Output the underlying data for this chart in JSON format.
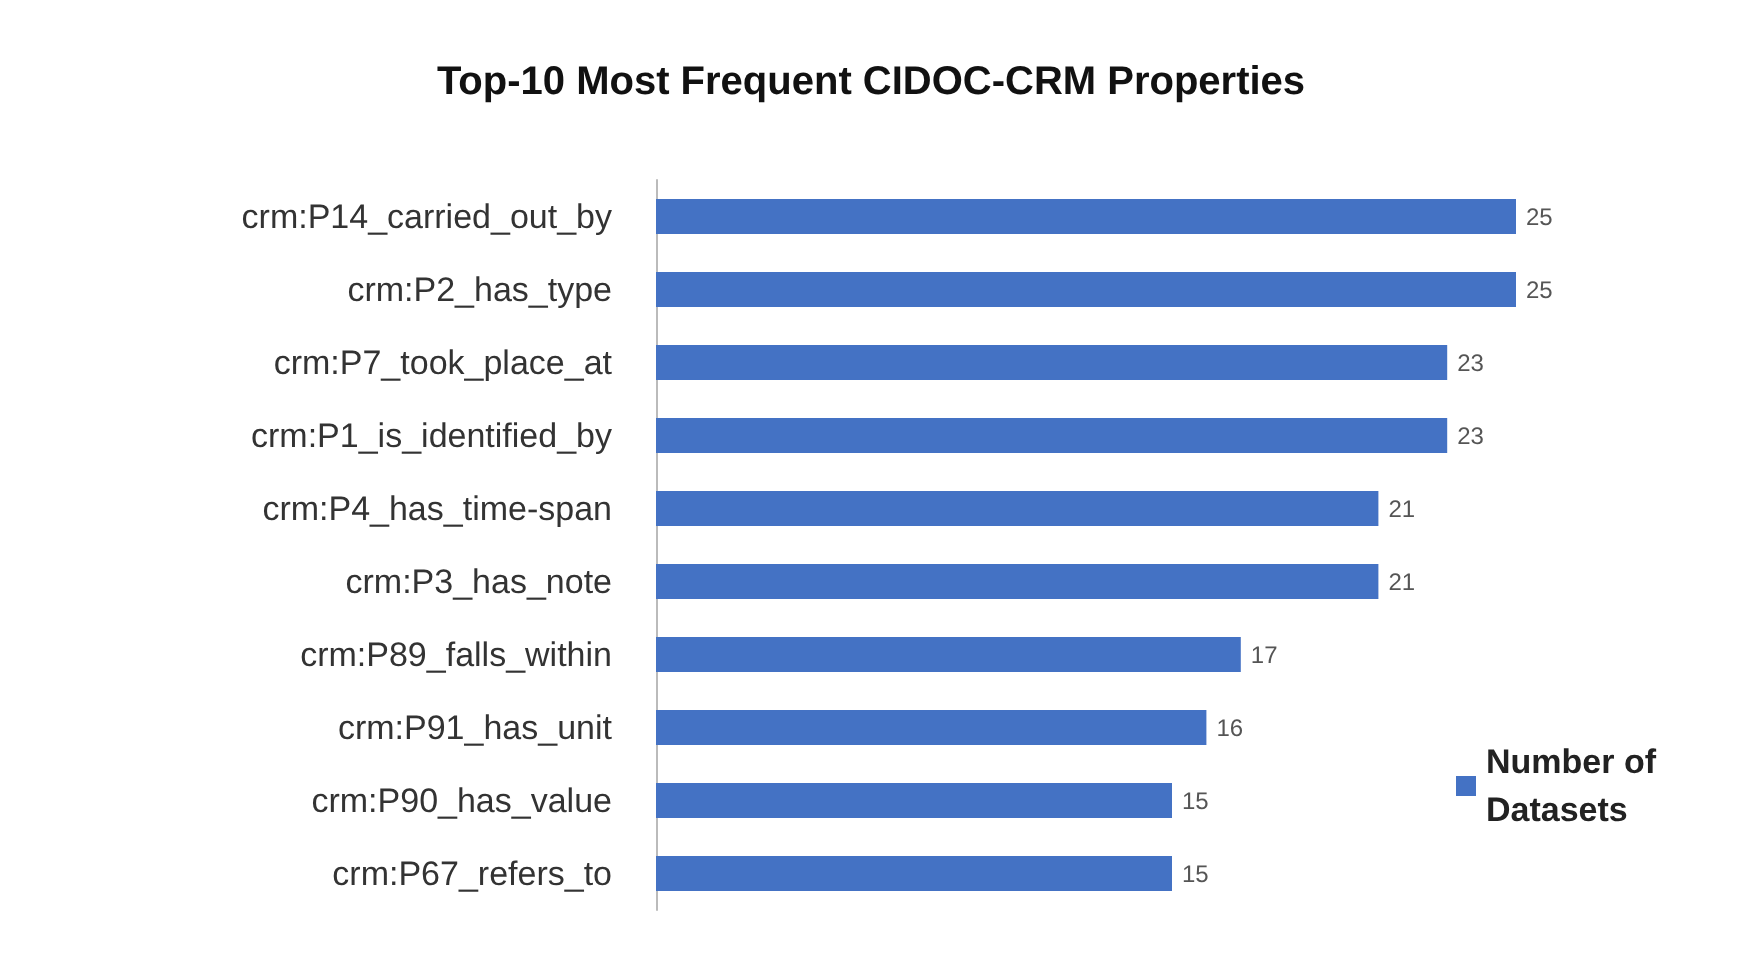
{
  "chart_data": {
    "type": "bar",
    "orientation": "horizontal",
    "title": "Top-10 Most Frequent CIDOC-CRM Properties",
    "categories": [
      "crm:P14_carried_out_by",
      "crm:P2_has_type",
      "crm:P7_took_place_at",
      "crm:P1_is_identified_by",
      "crm:P4_has_time-span",
      "crm:P3_has_note",
      "crm:P89_falls_within",
      "crm:P91_has_unit",
      "crm:P90_has_value",
      "crm:P67_refers_to"
    ],
    "series": [
      {
        "name": "Number of Datasets",
        "color": "#4472c4",
        "values": [
          25,
          25,
          23,
          23,
          21,
          21,
          17,
          16,
          15,
          15
        ]
      }
    ],
    "data_labels": true,
    "legend": "bottom right"
  }
}
